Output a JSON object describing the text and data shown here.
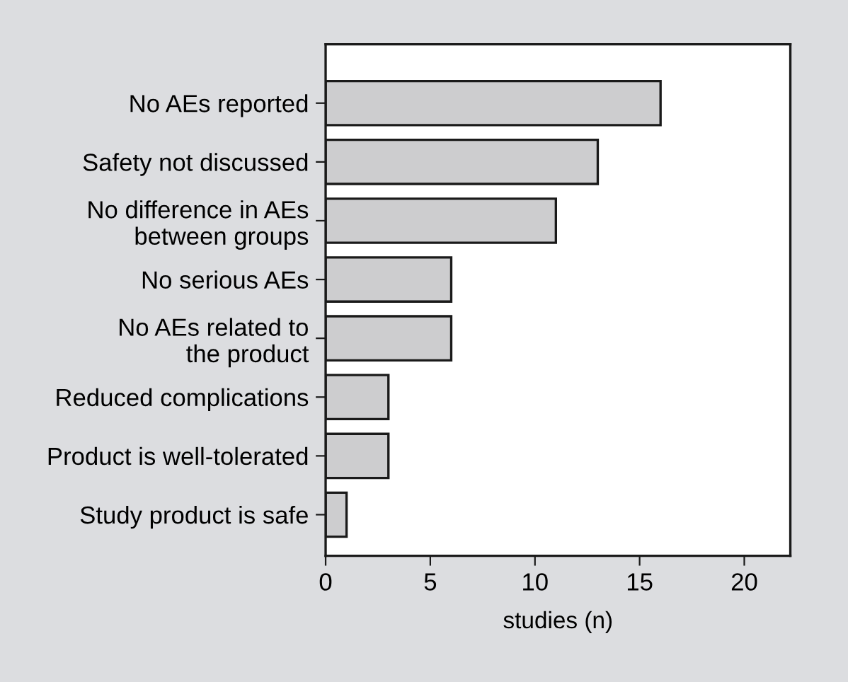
{
  "chart_data": {
    "type": "bar",
    "orientation": "horizontal",
    "xlabel": "studies (n)",
    "categories": [
      "No AEs reported",
      "Safety not discussed",
      "No difference in AEs\nbetween groups",
      "No serious AEs",
      "No AEs related to\nthe product",
      "Reduced complications",
      "Product is well-tolerated",
      "Study product is safe"
    ],
    "values": [
      16,
      13,
      11,
      6,
      6,
      3,
      3,
      1
    ],
    "color": "#cdcdcf",
    "xlim": [
      0,
      22.2
    ],
    "xticks": [
      0,
      5,
      10,
      15,
      20
    ],
    "grid": false
  }
}
